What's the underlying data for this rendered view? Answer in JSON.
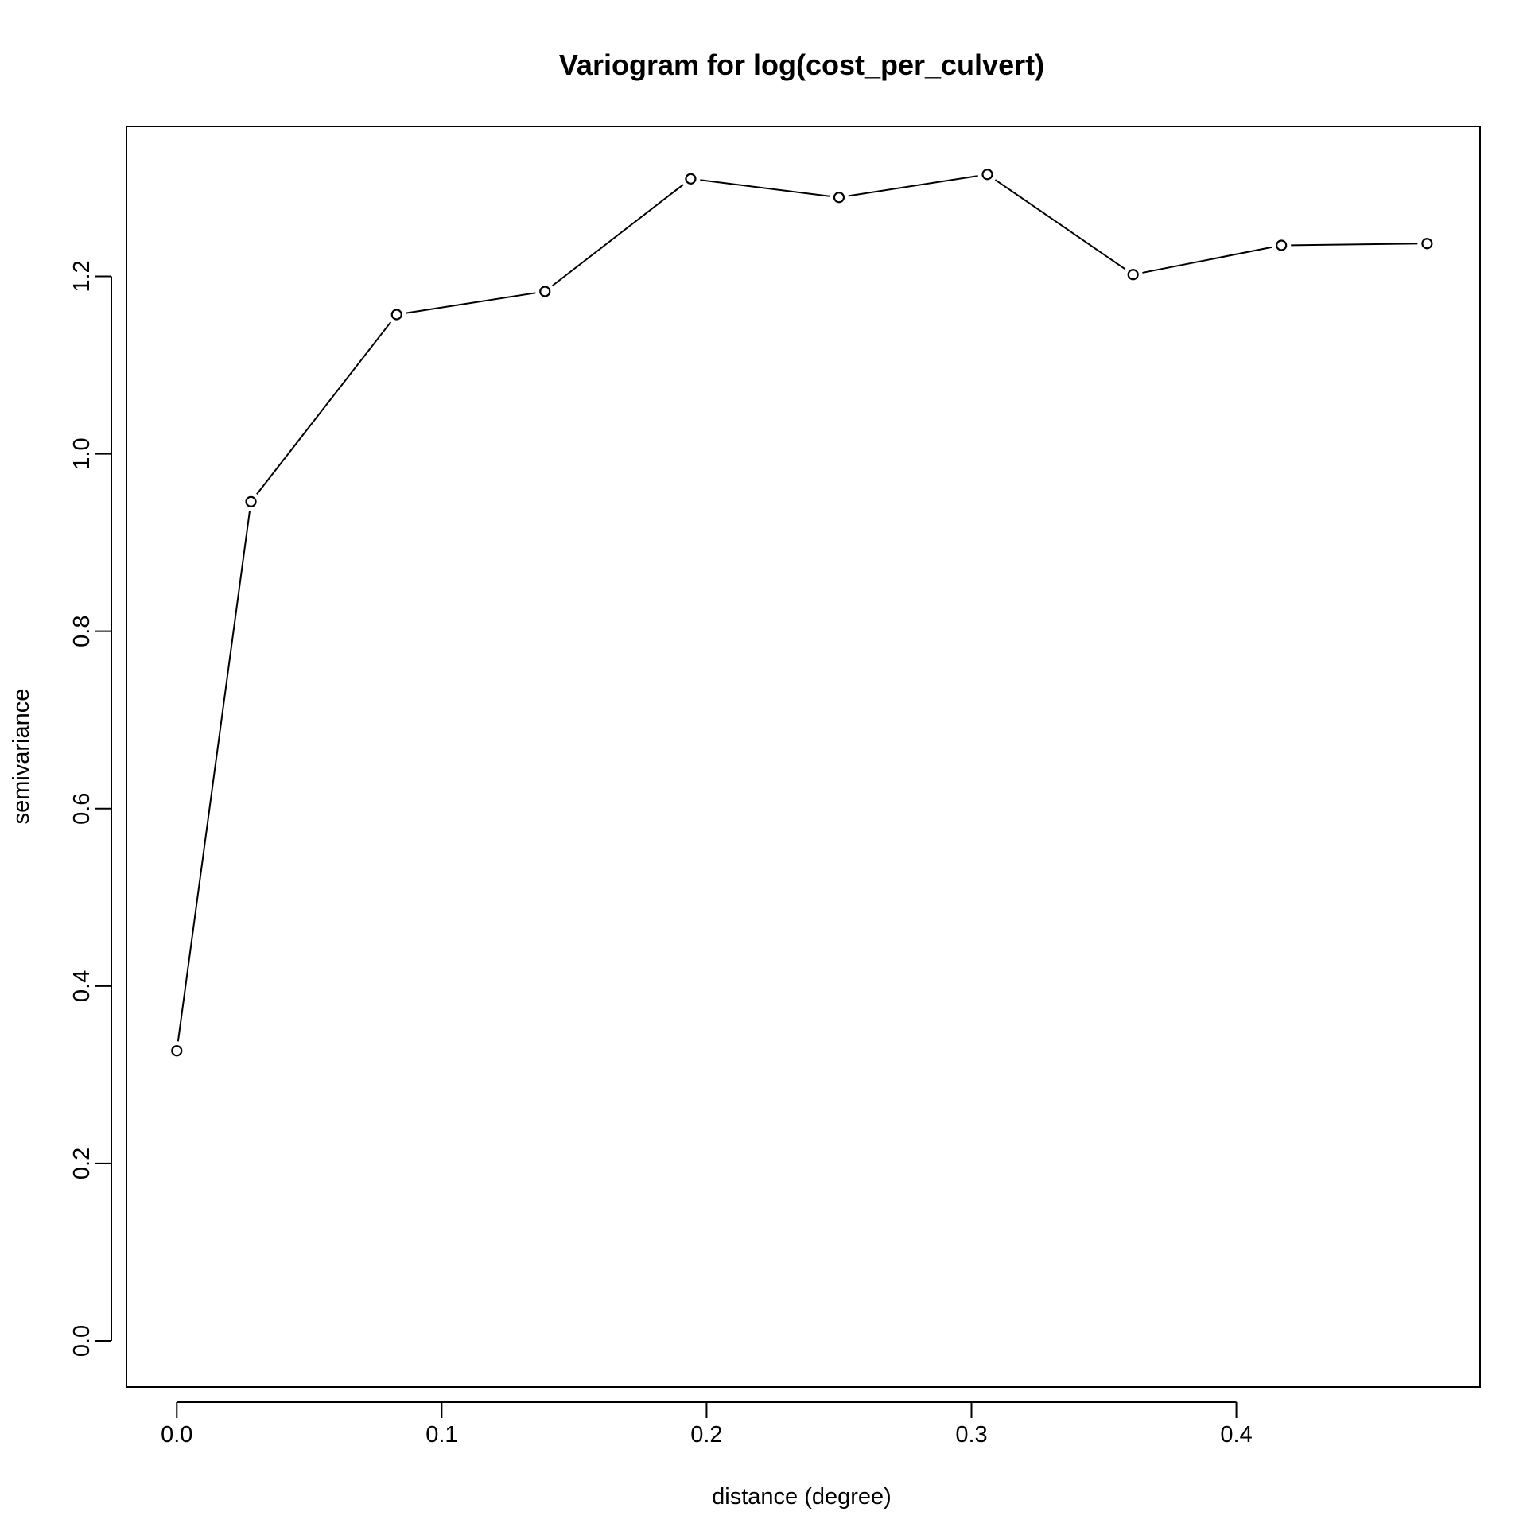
{
  "chart_data": {
    "type": "line",
    "title": "Variogram for log(cost_per_culvert)",
    "xlabel": "distance (degree)",
    "ylabel": "semivariance",
    "xlim": [
      -0.019,
      0.492
    ],
    "ylim": [
      -0.052,
      1.369
    ],
    "x_ticks": [
      0.0,
      0.1,
      0.2,
      0.3,
      0.4
    ],
    "x_tick_labels": [
      "0.0",
      "0.1",
      "0.2",
      "0.3",
      "0.4"
    ],
    "y_ticks": [
      0.0,
      0.2,
      0.4,
      0.6,
      0.8,
      1.0,
      1.2
    ],
    "y_tick_labels": [
      "0.0",
      "0.2",
      "0.4",
      "0.6",
      "0.8",
      "1.0",
      "1.2"
    ],
    "grid": false,
    "legend": "none",
    "marker": "open-circle",
    "color": "#000000",
    "series": [
      {
        "x": [
          0.0,
          0.028,
          0.083,
          0.139,
          0.194,
          0.25,
          0.306,
          0.361,
          0.417,
          0.472
        ],
        "y": [
          0.327,
          0.946,
          1.157,
          1.183,
          1.31,
          1.289,
          1.315,
          1.202,
          1.235,
          1.237
        ]
      }
    ]
  }
}
